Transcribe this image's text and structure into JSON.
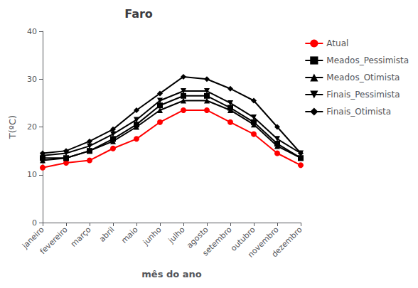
{
  "chart_data": {
    "type": "line",
    "title": "Faro",
    "xlabel": "mês do ano",
    "ylabel": "T(ºC)",
    "categories": [
      "janeiro",
      "fevereiro",
      "março",
      "abril",
      "maio",
      "junho",
      "julho",
      "agosto",
      "setembro",
      "outubro",
      "novembro",
      "dezembro"
    ],
    "series": [
      {
        "name": "Atual",
        "color": "#FF0000",
        "marker": "circle",
        "values": [
          11.5,
          12.5,
          13.0,
          15.5,
          17.5,
          21.0,
          23.5,
          23.5,
          21.0,
          18.5,
          14.5,
          12.0
        ]
      },
      {
        "name": "Meados_Pessimista",
        "color": "#000000",
        "marker": "square",
        "values": [
          13.5,
          13.5,
          15.0,
          17.5,
          20.5,
          24.5,
          26.5,
          26.5,
          24.0,
          21.0,
          16.5,
          13.5
        ]
      },
      {
        "name": "Meados_Otimista",
        "color": "#000000",
        "marker": "triangle-up",
        "values": [
          13.0,
          13.5,
          15.0,
          17.0,
          20.0,
          23.5,
          25.5,
          25.5,
          23.5,
          20.5,
          16.0,
          13.5
        ]
      },
      {
        "name": "Finais_Pessimista",
        "color": "#000000",
        "marker": "triangle-down",
        "values": [
          14.0,
          14.5,
          16.0,
          18.5,
          21.5,
          25.5,
          27.5,
          27.5,
          25.0,
          22.0,
          17.5,
          14.5
        ]
      },
      {
        "name": "Finais_Otimista",
        "color": "#000000",
        "marker": "diamond",
        "values": [
          14.5,
          15.0,
          17.0,
          19.5,
          23.5,
          27.0,
          30.5,
          30.0,
          28.0,
          25.5,
          20.0,
          14.5
        ]
      }
    ],
    "ylim": [
      0,
      40
    ],
    "yticks": [
      0,
      10,
      20,
      30,
      40
    ],
    "grid": false,
    "legend": "right"
  }
}
